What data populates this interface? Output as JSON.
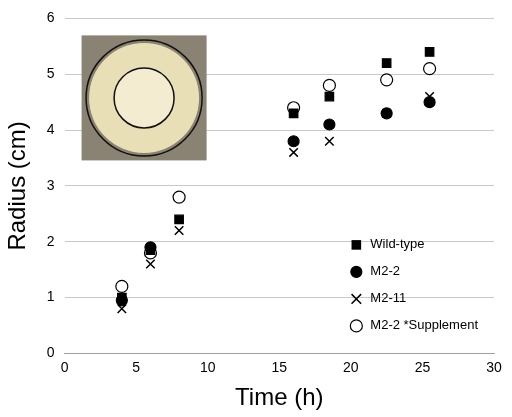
{
  "chart_data": {
    "type": "scatter",
    "x_label": "Time (h)",
    "y_label": "Radius (cm)",
    "xlim": [
      0,
      30
    ],
    "xticks": [
      0,
      5,
      10,
      15,
      20,
      25,
      30
    ],
    "ylim": [
      0,
      6
    ],
    "yticks": [
      0,
      1,
      2,
      3,
      4,
      5,
      6
    ],
    "grid": "y",
    "legend": "lower right",
    "series": [
      {
        "name": "Wild-type",
        "color": "#000000",
        "marker": "square",
        "x": [
          4,
          6,
          8,
          16,
          18.5,
          22.5,
          25.5
        ],
        "values": [
          1.0,
          1.85,
          2.4,
          4.3,
          4.6,
          5.2,
          5.4
        ]
      },
      {
        "name": "M2-2",
        "color": "#000000",
        "marker": "circle",
        "x": [
          4,
          6,
          16,
          18.5,
          22.5,
          25.5
        ],
        "values": [
          0.95,
          1.9,
          3.8,
          4.1,
          4.3,
          4.5
        ]
      },
      {
        "name": "M2-11",
        "color": "#000000",
        "marker": "x",
        "x": [
          4,
          6,
          8,
          16,
          18.5,
          22.5,
          25.5
        ],
        "values": [
          0.8,
          1.6,
          2.2,
          3.6,
          3.8,
          4.3,
          4.6
        ]
      },
      {
        "name": "M2-2 *Supplement",
        "color": "#000000",
        "marker": "open_circle",
        "x": [
          4,
          6,
          8,
          16,
          18.5,
          22.5,
          25.5
        ],
        "values": [
          1.2,
          1.8,
          2.8,
          4.4,
          4.8,
          4.9,
          5.1
        ]
      }
    ]
  }
}
